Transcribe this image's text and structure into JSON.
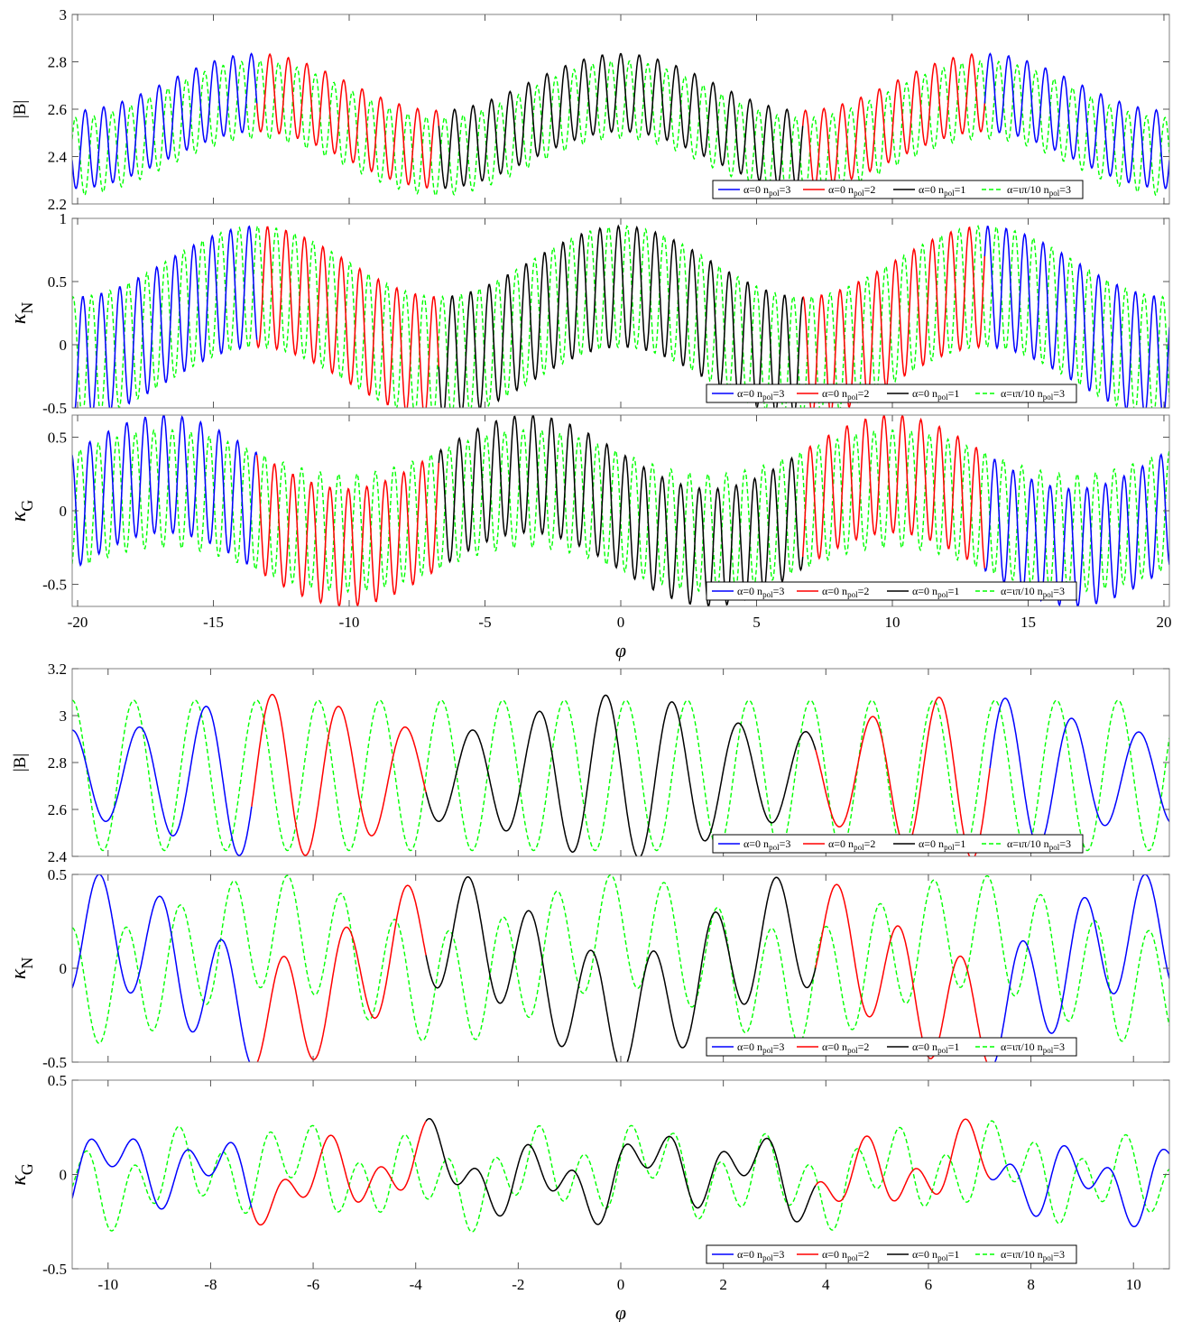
{
  "colors": {
    "blue": "#0000ff",
    "red": "#ff0000",
    "black": "#000000",
    "green": "#00ff00"
  },
  "chart_data": [
    {
      "type": "line",
      "group": "top",
      "panel": 0,
      "ylabel": "|B|",
      "xlim": [
        -20.2,
        20.2
      ],
      "ylim": [
        2.2,
        3.0
      ],
      "yticks": [
        "3",
        "2.8",
        "2.6",
        "2.4",
        "2.2"
      ],
      "ytickvals": [
        3.0,
        2.8,
        2.6,
        2.4,
        2.2
      ],
      "xticks": [],
      "xlabel": "",
      "series": [
        {
          "name": "α=0 n_pol=3",
          "color": "blue",
          "style": "solid"
        },
        {
          "name": "α=0 n_pol=2",
          "color": "red",
          "style": "solid"
        },
        {
          "name": "α=0 n_pol=1",
          "color": "black",
          "style": "solid"
        },
        {
          "name": "α=ιπ/10 n_pol=3",
          "color": "green",
          "style": "dashed"
        }
      ],
      "legend": "bottom-right"
    },
    {
      "type": "line",
      "group": "top",
      "panel": 1,
      "ylabel": "κN",
      "xlim": [
        -20.2,
        20.2
      ],
      "ylim": [
        -0.5,
        1.0
      ],
      "yticks": [
        "1",
        "0.5",
        "0",
        "-0.5"
      ],
      "ytickvals": [
        1.0,
        0.5,
        0.0,
        -0.5
      ],
      "xticks": [],
      "xlabel": "",
      "series": [
        {
          "name": "α=0 n_pol=3",
          "color": "blue",
          "style": "solid"
        },
        {
          "name": "α=0 n_pol=2",
          "color": "red",
          "style": "solid"
        },
        {
          "name": "α=0 n_pol=1",
          "color": "black",
          "style": "solid"
        },
        {
          "name": "α=ιπ/10 n_pol=3",
          "color": "green",
          "style": "dashed"
        }
      ],
      "legend": "bottom-right"
    },
    {
      "type": "line",
      "group": "top",
      "panel": 2,
      "ylabel": "κG",
      "xlim": [
        -20.2,
        20.2
      ],
      "ylim": [
        -0.65,
        0.65
      ],
      "yticks": [
        "0.5",
        "0",
        "-0.5"
      ],
      "ytickvals": [
        0.5,
        0.0,
        -0.5
      ],
      "xticks": [
        "-20",
        "-15",
        "-10",
        "-5",
        "0",
        "5",
        "10",
        "15",
        "20"
      ],
      "xtickvals": [
        -20,
        -15,
        -10,
        -5,
        0,
        5,
        10,
        15,
        20
      ],
      "xlabel": "φ",
      "series": [
        {
          "name": "α=0 n_pol=3",
          "color": "blue",
          "style": "solid"
        },
        {
          "name": "α=0 n_pol=2",
          "color": "red",
          "style": "solid"
        },
        {
          "name": "α=0 n_pol=1",
          "color": "black",
          "style": "solid"
        },
        {
          "name": "α=ιπ/10 n_pol=3",
          "color": "green",
          "style": "dashed"
        }
      ],
      "legend": "bottom-right"
    },
    {
      "type": "line",
      "group": "bottom",
      "panel": 3,
      "ylabel": "|B|",
      "xlim": [
        -10.7,
        10.7
      ],
      "ylim": [
        2.4,
        3.2
      ],
      "yticks": [
        "3.2",
        "3",
        "2.8",
        "2.6",
        "2.4"
      ],
      "ytickvals": [
        3.2,
        3.0,
        2.8,
        2.6,
        2.4
      ],
      "xticks": [],
      "xlabel": "",
      "series": [
        {
          "name": "α=0 n_pol=3",
          "color": "blue",
          "style": "solid"
        },
        {
          "name": "α=0 n_pol=2",
          "color": "red",
          "style": "solid"
        },
        {
          "name": "α=0 n_pol=1",
          "color": "black",
          "style": "solid"
        },
        {
          "name": "α=ιπ/10 n_pol=3",
          "color": "green",
          "style": "dashed"
        }
      ],
      "legend": "bottom-right"
    },
    {
      "type": "line",
      "group": "bottom",
      "panel": 4,
      "ylabel": "κN",
      "xlim": [
        -10.7,
        10.7
      ],
      "ylim": [
        -0.5,
        0.5
      ],
      "yticks": [
        "0.5",
        "0",
        "-0.5"
      ],
      "ytickvals": [
        0.5,
        0.0,
        -0.5
      ],
      "xticks": [],
      "xlabel": "",
      "series": [
        {
          "name": "α=0 n_pol=3",
          "color": "blue",
          "style": "solid"
        },
        {
          "name": "α=0 n_pol=2",
          "color": "red",
          "style": "solid"
        },
        {
          "name": "α=0 n_pol=1",
          "color": "black",
          "style": "solid"
        },
        {
          "name": "α=ιπ/10 n_pol=3",
          "color": "green",
          "style": "dashed"
        }
      ],
      "legend": "bottom-right"
    },
    {
      "type": "line",
      "group": "bottom",
      "panel": 5,
      "ylabel": "κG",
      "xlim": [
        -10.7,
        10.7
      ],
      "ylim": [
        -0.5,
        0.5
      ],
      "yticks": [
        "0.5",
        "0",
        "-0.5"
      ],
      "ytickvals": [
        0.5,
        0.0,
        -0.5
      ],
      "xticks": [
        "-10",
        "-8",
        "-6",
        "-4",
        "-2",
        "0",
        "2",
        "4",
        "6",
        "8",
        "10"
      ],
      "xtickvals": [
        -10,
        -8,
        -6,
        -4,
        -2,
        0,
        2,
        4,
        6,
        8,
        10
      ],
      "xlabel": "φ",
      "series": [
        {
          "name": "α=0 n_pol=3",
          "color": "blue",
          "style": "solid"
        },
        {
          "name": "α=0 n_pol=2",
          "color": "red",
          "style": "solid"
        },
        {
          "name": "α=0 n_pol=1",
          "color": "black",
          "style": "solid"
        },
        {
          "name": "α=ιπ/10 n_pol=3",
          "color": "green",
          "style": "dashed"
        }
      ],
      "legend": "bottom-right"
    }
  ]
}
